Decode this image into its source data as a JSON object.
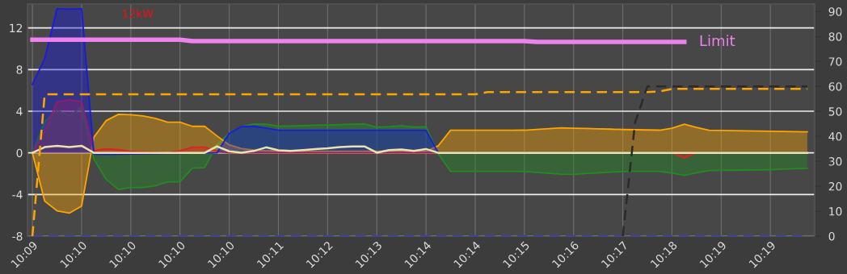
{
  "chart_data": {
    "type": "line",
    "ylim": [
      -8,
      14.3
    ],
    "y2lim": [
      0,
      93
    ],
    "categories": [
      "10:09",
      null,
      null,
      null,
      "10:10",
      null,
      null,
      null,
      "10:10",
      null,
      null,
      null,
      "10:10",
      null,
      null,
      null,
      "10:10",
      null,
      null,
      null,
      "10:11",
      null,
      null,
      null,
      "10:12",
      null,
      null,
      null,
      "10:13",
      null,
      null,
      null,
      "10:14",
      null,
      null,
      null,
      "10:14",
      null,
      null,
      null,
      "10:15",
      null,
      null,
      null,
      "10:16",
      null,
      null,
      null,
      "10:17",
      null,
      null,
      null,
      "10:18",
      null,
      null,
      null,
      "10:19",
      null,
      null,
      null,
      "10:19",
      null,
      null,
      null
    ],
    "yticks": [
      12,
      8,
      4,
      0,
      -4,
      -8
    ],
    "y2ticks": [
      0,
      10,
      20,
      30,
      40,
      50,
      60,
      70,
      80,
      90
    ],
    "grid": true,
    "annotations": [
      "12kW"
    ],
    "series": [
      {
        "type": "area",
        "color": "#228b22",
        "values": [
          0,
          3.0,
          4.1,
          3.56,
          4.4,
          -0.61,
          -2.55,
          -3.52,
          -3.33,
          -3.33,
          -3.16,
          -2.79,
          -2.79,
          -1.47,
          -1.42,
          0.78,
          1.9,
          2.5,
          2.77,
          2.75,
          2.56,
          2.58,
          2.61,
          2.65,
          2.68,
          2.71,
          2.75,
          2.78,
          2.47,
          2.52,
          2.6,
          2.48,
          2.51,
          -0.08,
          -1.78,
          -1.78,
          -1.78,
          -1.78,
          -1.78,
          -1.78,
          -1.79,
          -1.87,
          -1.96,
          -2.04,
          -2.06,
          -1.99,
          -1.92,
          -1.85,
          -1.79,
          -1.78,
          -1.78,
          -1.78,
          -1.94,
          -2.16,
          -1.91,
          -1.7,
          -1.68,
          -1.67,
          -1.65,
          -1.64,
          -1.61,
          -1.57,
          -1.53,
          -1.49
        ]
      },
      {
        "type": "area",
        "color": "#ffa500",
        "values": [
          0,
          -4.63,
          -5.57,
          -5.79,
          -5.11,
          1.51,
          3.1,
          3.7,
          3.66,
          3.55,
          3.31,
          2.94,
          2.94,
          2.55,
          2.55,
          1.63,
          0.77,
          0.41,
          0.28,
          0.21,
          0.17,
          0.15,
          0.15,
          0.15,
          0.15,
          0.15,
          0.15,
          0.15,
          0.15,
          0.15,
          0.15,
          0.15,
          0.15,
          0.68,
          2.17,
          2.17,
          2.17,
          2.17,
          2.17,
          2.17,
          2.18,
          2.25,
          2.33,
          2.4,
          2.37,
          2.34,
          2.31,
          2.28,
          2.24,
          2.22,
          2.2,
          2.18,
          2.37,
          2.76,
          2.44,
          2.17,
          2.15,
          2.13,
          2.11,
          2.1,
          2.08,
          2.06,
          2.04,
          2.02
        ]
      },
      {
        "type": "area",
        "color": "#dd2222",
        "values": [
          0,
          2.05,
          4.88,
          5.1,
          4.91,
          0.22,
          0.39,
          0.32,
          0.13,
          0.09,
          0.06,
          0.02,
          0.2,
          0.54,
          0.54,
          0.18,
          0,
          0,
          0,
          0,
          0,
          0,
          0,
          0,
          0,
          0,
          0,
          0,
          0,
          0,
          0,
          0,
          0,
          0,
          0,
          0,
          0,
          0,
          0,
          0,
          0,
          0,
          0,
          0,
          0,
          0,
          0,
          0,
          0,
          0,
          0,
          0,
          0,
          -0.48,
          0,
          0,
          0,
          0,
          0,
          0,
          0,
          0,
          0,
          0
        ]
      },
      {
        "type": "area",
        "color": "#1a1ae0",
        "values": [
          6.58,
          9.06,
          13.84,
          13.81,
          13.85,
          -0.12,
          -0.14,
          -0.12,
          -0.11,
          -0.09,
          -0.08,
          -0.06,
          -0.05,
          -0.03,
          -0.02,
          0,
          1.87,
          2.52,
          2.55,
          2.38,
          2.17,
          2.17,
          2.17,
          2.17,
          2.17,
          2.17,
          2.17,
          2.17,
          2.17,
          2.17,
          2.17,
          2.17,
          2.17,
          0,
          0,
          0,
          0,
          0,
          0,
          0,
          0,
          0,
          0,
          0,
          0,
          0,
          0,
          0,
          0,
          0,
          0,
          0,
          0,
          0,
          0,
          0,
          0,
          0,
          0,
          0,
          0,
          0,
          0,
          0
        ]
      },
      {
        "color": "#e8e4b0",
        "values": [
          0,
          0.55,
          0.67,
          0.56,
          0.68,
          0,
          0,
          0,
          0,
          0,
          0,
          0,
          0,
          0,
          0,
          0.63,
          0.15,
          0.01,
          0.18,
          0.53,
          0.25,
          0.19,
          0.27,
          0.36,
          0.44,
          0.55,
          0.62,
          0.62,
          0.02,
          0.27,
          0.32,
          0.19,
          0.37,
          0,
          0,
          0,
          0,
          0,
          0,
          0,
          0,
          0,
          0,
          0,
          0,
          0,
          0,
          0,
          0,
          0,
          0,
          0,
          0,
          0,
          0,
          0,
          0,
          0,
          0,
          0,
          0,
          0,
          0,
          0
        ]
      },
      {
        "color": "#3a3acc",
        "line_style": "dashed",
        "axis": "y2",
        "values": [
          0,
          0,
          0,
          0,
          0,
          0,
          0,
          0,
          0,
          0,
          0,
          0,
          0,
          0,
          0,
          0,
          0,
          0,
          0,
          0,
          0,
          0,
          0,
          0,
          0,
          0,
          0,
          0,
          0,
          0,
          0,
          0,
          0,
          0,
          0,
          0,
          0,
          0,
          0,
          0,
          0,
          0,
          0,
          0,
          0,
          0,
          0,
          0,
          0,
          0,
          0,
          0,
          0,
          0,
          0,
          0,
          0,
          0,
          0,
          0,
          0,
          0,
          0,
          0
        ]
      },
      {
        "color": "#ffa500",
        "line_style": "dashed",
        "axis": "y2",
        "values": [
          0,
          56.8,
          56.8,
          56.8,
          56.8,
          56.8,
          56.8,
          56.8,
          56.8,
          56.8,
          56.8,
          56.8,
          56.8,
          56.8,
          56.8,
          56.8,
          56.8,
          56.8,
          56.8,
          56.8,
          56.8,
          56.8,
          56.8,
          56.8,
          56.8,
          56.8,
          56.8,
          56.8,
          56.8,
          56.8,
          56.8,
          56.8,
          56.8,
          56.8,
          56.8,
          56.8,
          56.8,
          57.7,
          57.7,
          57.7,
          57.7,
          57.7,
          57.7,
          57.7,
          57.7,
          57.7,
          57.7,
          57.7,
          57.7,
          57.7,
          57.7,
          58.0,
          59,
          59,
          59,
          59,
          59,
          59,
          59,
          59,
          59,
          59,
          59,
          59
        ]
      },
      {
        "color": "#2a2a2a",
        "line_style": "dashed",
        "axis": "y2",
        "values": [
          null,
          null,
          null,
          null,
          null,
          null,
          null,
          null,
          null,
          null,
          null,
          null,
          null,
          null,
          null,
          null,
          null,
          null,
          null,
          null,
          null,
          null,
          null,
          null,
          null,
          null,
          null,
          null,
          null,
          null,
          null,
          null,
          null,
          null,
          null,
          null,
          null,
          null,
          null,
          null,
          null,
          null,
          null,
          null,
          null,
          null,
          null,
          null,
          0,
          45.6,
          60,
          60,
          60,
          60,
          60,
          60,
          60,
          60,
          60,
          60,
          60,
          60,
          60,
          60
        ]
      },
      {
        "name": "Limit",
        "color": "#ee82ee",
        "values": [
          10.87,
          10.87,
          10.87,
          10.87,
          10.87,
          10.87,
          10.87,
          10.87,
          10.87,
          10.87,
          10.87,
          10.87,
          10.87,
          10.74,
          10.74,
          10.74,
          10.74,
          10.74,
          10.74,
          10.74,
          10.74,
          10.74,
          10.74,
          10.74,
          10.74,
          10.74,
          10.74,
          10.74,
          10.74,
          10.74,
          10.74,
          10.74,
          10.74,
          10.74,
          10.74,
          10.74,
          10.74,
          10.74,
          10.74,
          10.74,
          10.74,
          10.66,
          10.66,
          10.66,
          10.66,
          10.66,
          10.66,
          10.66,
          10.66,
          10.66,
          10.66,
          10.66,
          10.66,
          10.66,
          null,
          null,
          null,
          null,
          null,
          null,
          null,
          null,
          null,
          null
        ]
      }
    ]
  }
}
